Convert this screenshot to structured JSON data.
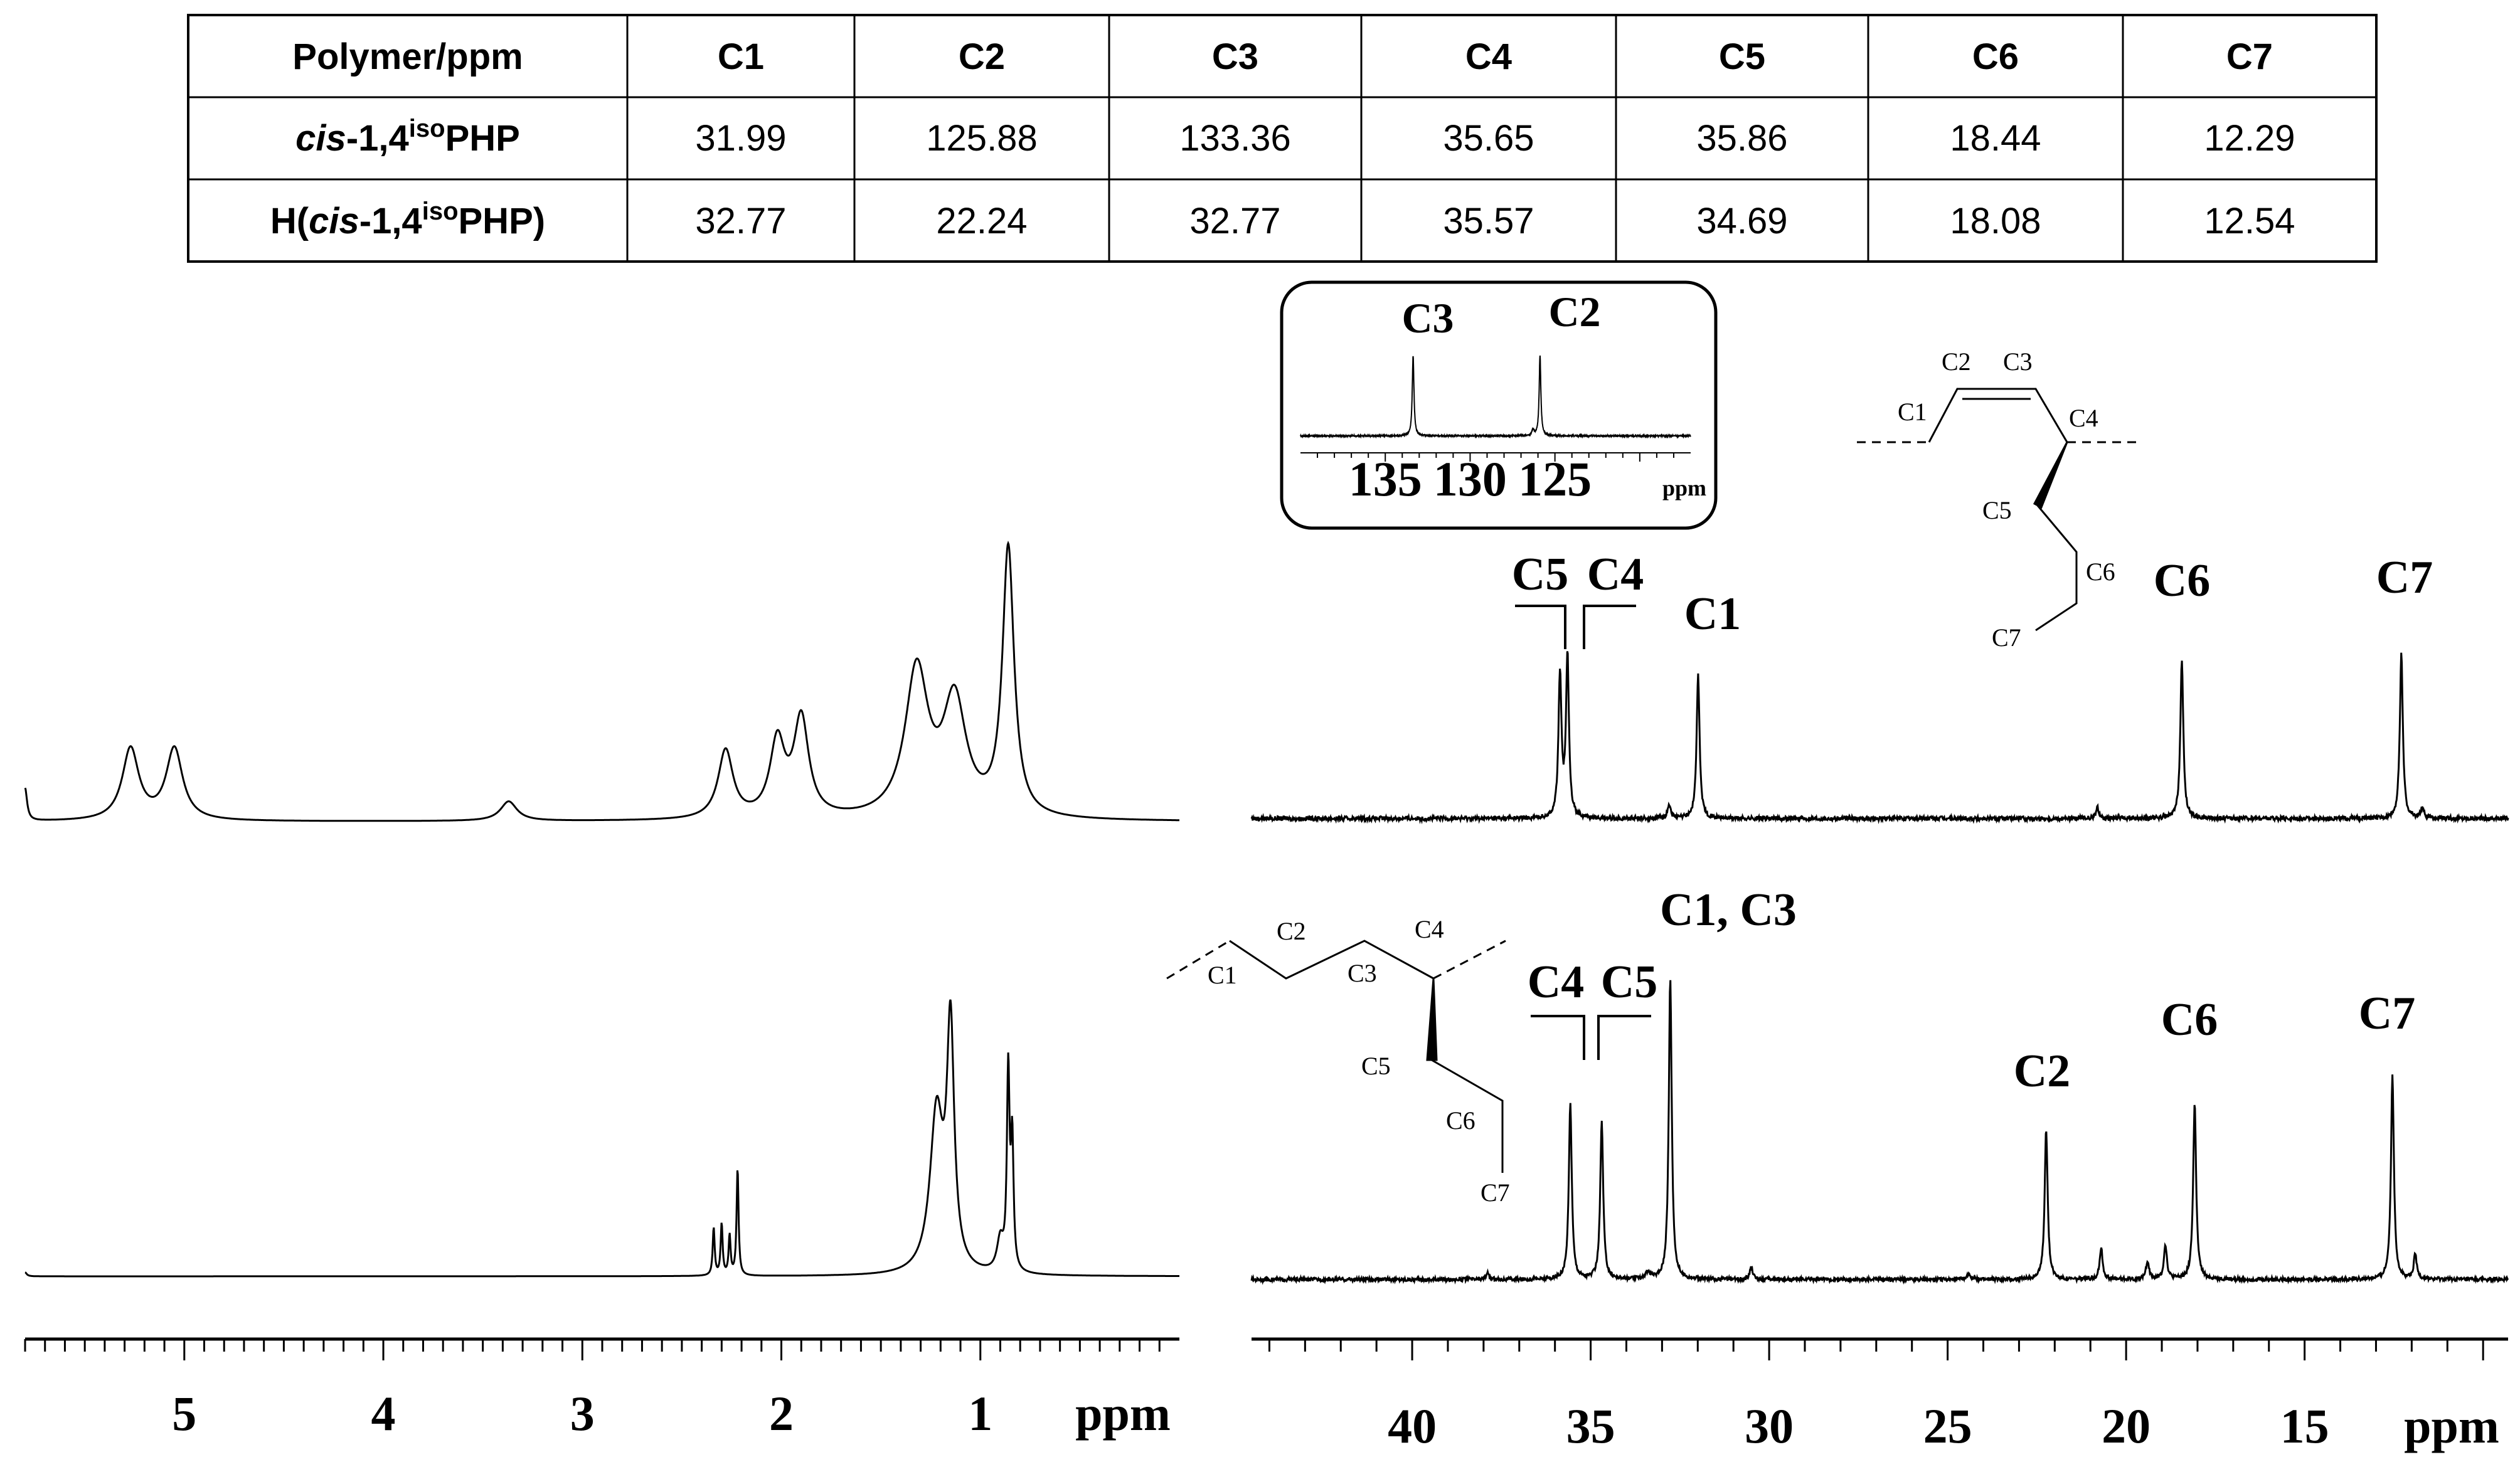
{
  "table": {
    "header": [
      "Polymer/ppm",
      "C1",
      "C2",
      "C3",
      "C4",
      "C5",
      "C6",
      "C7"
    ],
    "rows": [
      {
        "polymer": {
          "pre": "",
          "italic": "cis",
          "mid": "-1,4",
          "sup": "iso",
          "post": "PHP"
        },
        "values": [
          "31.99",
          "125.88",
          "133.36",
          "35.65",
          "35.86",
          "18.44",
          "12.29"
        ]
      },
      {
        "polymer": {
          "pre": "H(",
          "italic": "cis",
          "mid": "-1,4",
          "sup": "iso",
          "post": "PHP)"
        },
        "values": [
          "32.77",
          "22.24",
          "32.77",
          "35.57",
          "34.69",
          "18.08",
          "12.54"
        ]
      }
    ]
  },
  "chart_data": [
    {
      "type": "line",
      "panel": "1H NMR, cis-1,4isoPHP (left top)",
      "x_reversed": true,
      "xlim": [
        5.8,
        0.0
      ],
      "peaks": [
        {
          "x": 5.8,
          "h": 0.1,
          "w": 0.012
        },
        {
          "x": 5.27,
          "h": 0.22,
          "w": 0.05
        },
        {
          "x": 5.05,
          "h": 0.22,
          "w": 0.05
        },
        {
          "x": 3.37,
          "h": 0.06,
          "w": 0.05
        },
        {
          "x": 2.28,
          "h": 0.21,
          "w": 0.045
        },
        {
          "x": 2.02,
          "h": 0.23,
          "w": 0.045
        },
        {
          "x": 1.9,
          "h": 0.3,
          "w": 0.045
        },
        {
          "x": 1.32,
          "h": 0.45,
          "w": 0.07
        },
        {
          "x": 1.13,
          "h": 0.35,
          "w": 0.07
        },
        {
          "x": 0.86,
          "h": 0.82,
          "w": 0.035
        }
      ]
    },
    {
      "type": "line",
      "panel": "1H NMR, H(cis-1,4isoPHP) (left bottom)",
      "x_reversed": true,
      "xlim": [
        5.8,
        0.0
      ],
      "peaks": [
        {
          "x": 5.8,
          "h": 0.01,
          "w": 0.01
        },
        {
          "x": 2.34,
          "h": 0.12,
          "w": 0.006
        },
        {
          "x": 2.3,
          "h": 0.13,
          "w": 0.006
        },
        {
          "x": 2.26,
          "h": 0.1,
          "w": 0.006
        },
        {
          "x": 2.22,
          "h": 0.27,
          "w": 0.006
        },
        {
          "x": 1.22,
          "h": 0.4,
          "w": 0.04
        },
        {
          "x": 1.15,
          "h": 0.6,
          "w": 0.022
        },
        {
          "x": 0.9,
          "h": 0.08,
          "w": 0.02
        },
        {
          "x": 0.86,
          "h": 0.5,
          "w": 0.008
        },
        {
          "x": 0.84,
          "h": 0.32,
          "w": 0.008
        }
      ],
      "x_ticks": [
        5,
        4,
        3,
        2,
        1
      ],
      "x_unit": "ppm"
    },
    {
      "type": "line",
      "panel": "13C NMR, cis-1,4isoPHP (right top)",
      "x_reversed": true,
      "xlim": [
        44.5,
        9.3
      ],
      "peaks": [
        {
          "x": 35.86,
          "h": 0.4,
          "w": 0.05,
          "label": "C5"
        },
        {
          "x": 35.65,
          "h": 0.45,
          "w": 0.05,
          "label": "C4"
        },
        {
          "x": 32.8,
          "h": 0.04,
          "w": 0.05
        },
        {
          "x": 31.99,
          "h": 0.4,
          "w": 0.05,
          "label": "C1"
        },
        {
          "x": 20.8,
          "h": 0.03,
          "w": 0.05
        },
        {
          "x": 18.44,
          "h": 0.44,
          "w": 0.05,
          "label": "C6"
        },
        {
          "x": 12.29,
          "h": 0.46,
          "w": 0.05,
          "label": "C7"
        },
        {
          "x": 11.7,
          "h": 0.03,
          "w": 0.05
        }
      ],
      "peak_labels": [
        "C5",
        "C4",
        "C1",
        "C6",
        "C7"
      ]
    },
    {
      "type": "line",
      "panel": "13C NMR inset (olefinic region)",
      "x_reversed": true,
      "xlim": [
        140,
        117
      ],
      "peaks": [
        {
          "x": 133.36,
          "h": 0.85,
          "w": 0.06,
          "label": "C3"
        },
        {
          "x": 125.88,
          "h": 0.85,
          "w": 0.06,
          "label": "C2"
        },
        {
          "x": 126.3,
          "h": 0.06,
          "w": 0.08
        }
      ],
      "x_ticks": [
        135,
        130,
        125
      ],
      "x_unit": "ppm",
      "peak_labels": [
        "C3",
        "C2"
      ]
    },
    {
      "type": "line",
      "panel": "13C NMR, H(cis-1,4isoPHP) (right bottom)",
      "x_reversed": true,
      "xlim": [
        44.5,
        9.3
      ],
      "peaks": [
        {
          "x": 37.9,
          "h": 0.02,
          "w": 0.05
        },
        {
          "x": 35.57,
          "h": 0.56,
          "w": 0.05,
          "label": "C4"
        },
        {
          "x": 34.69,
          "h": 0.5,
          "w": 0.05,
          "label": "C5"
        },
        {
          "x": 33.4,
          "h": 0.02,
          "w": 0.08
        },
        {
          "x": 32.77,
          "h": 0.96,
          "w": 0.05,
          "label": "C1, C3"
        },
        {
          "x": 30.5,
          "h": 0.04,
          "w": 0.05
        },
        {
          "x": 24.4,
          "h": 0.02,
          "w": 0.05
        },
        {
          "x": 22.24,
          "h": 0.48,
          "w": 0.05,
          "label": "C2"
        },
        {
          "x": 20.7,
          "h": 0.1,
          "w": 0.05
        },
        {
          "x": 19.4,
          "h": 0.06,
          "w": 0.05
        },
        {
          "x": 18.9,
          "h": 0.11,
          "w": 0.05
        },
        {
          "x": 18.08,
          "h": 0.56,
          "w": 0.05,
          "label": "C6"
        },
        {
          "x": 12.54,
          "h": 0.65,
          "w": 0.05,
          "label": "C7"
        },
        {
          "x": 11.9,
          "h": 0.08,
          "w": 0.05
        }
      ],
      "x_ticks": [
        40,
        35,
        30,
        25,
        20,
        15
      ],
      "x_unit": "ppm",
      "peak_labels": [
        "C4",
        "C5",
        "C1, C3",
        "C2",
        "C6",
        "C7"
      ]
    }
  ],
  "structures": {
    "top": [
      "C1",
      "C2",
      "C3",
      "C4",
      "C5",
      "C6",
      "C7"
    ],
    "bottom": [
      "C1",
      "C2",
      "C3",
      "C4",
      "C5",
      "C6",
      "C7"
    ]
  }
}
